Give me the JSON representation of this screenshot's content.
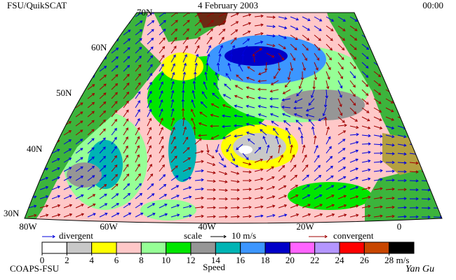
{
  "header": {
    "source": "FSU/QuikSCAT",
    "date": "4 February 2003",
    "time": "00:00"
  },
  "map": {
    "lat_labels": [
      "70N",
      "60N",
      "50N",
      "40N",
      "30N"
    ],
    "lon_labels": [
      "80W",
      "60W",
      "40W",
      "20W",
      "0"
    ]
  },
  "legend": {
    "divergent": "divergent",
    "scale": "scale",
    "scale_value": "10 m/s",
    "convergent": "convergent",
    "divergent_color": "#0000dd",
    "convergent_color": "#a00000"
  },
  "colorbar": {
    "ticks": [
      0,
      2,
      4,
      6,
      8,
      10,
      12,
      14,
      16,
      18,
      20,
      22,
      24,
      26,
      28
    ],
    "unit": "m/s",
    "label": "Speed",
    "colors": [
      "#ffffff",
      "#c8c8c8",
      "#ffff00",
      "#ffc8c8",
      "#96ff96",
      "#00e600",
      "#969696",
      "#00b4b4",
      "#3c96ff",
      "#0000c8",
      "#ff64ff",
      "#b496ff",
      "#ff0000",
      "#c84600",
      "#000000"
    ]
  },
  "footer": {
    "left": "COAPS-FSU",
    "signature": "Yan Gu"
  }
}
